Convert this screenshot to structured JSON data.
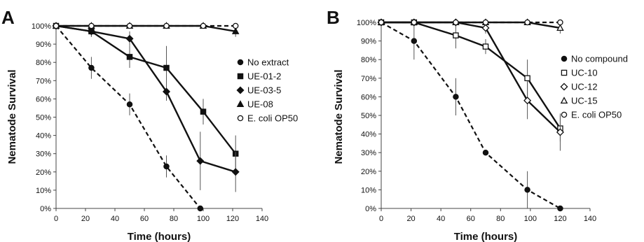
{
  "chart_data": [
    {
      "type": "line",
      "panel_label": "A",
      "xlabel": "Time (hours)",
      "ylabel": "Nematode Survival",
      "xlim": [
        0,
        140
      ],
      "ylim": [
        0,
        100
      ],
      "x_ticks": [
        "0",
        "20",
        "40",
        "60",
        "80",
        "100",
        "120",
        "140"
      ],
      "y_ticks": [
        "0%",
        "10%",
        "20%",
        "30%",
        "40%",
        "50%",
        "60%",
        "70%",
        "80%",
        "90%",
        "100%"
      ],
      "grid": false,
      "legend_position": "right",
      "series": [
        {
          "name": "No extract",
          "marker": "circle-filled",
          "dash": true,
          "x": [
            0,
            24,
            50,
            75,
            98
          ],
          "y": [
            100,
            77,
            57,
            23,
            0
          ],
          "err": [
            0,
            6,
            6,
            6,
            0
          ]
        },
        {
          "name": "UE-01-2",
          "marker": "square-filled",
          "dash": false,
          "x": [
            0,
            24,
            50,
            75,
            100,
            122
          ],
          "y": [
            100,
            97,
            83,
            77,
            53,
            30
          ],
          "err": [
            0,
            3,
            6,
            12,
            7,
            10
          ]
        },
        {
          "name": "UE-03-5",
          "marker": "diamond-filled",
          "dash": false,
          "x": [
            0,
            24,
            50,
            75,
            98,
            122
          ],
          "y": [
            100,
            97,
            93,
            64,
            26,
            20
          ],
          "err": [
            0,
            3,
            4,
            5,
            16,
            11
          ]
        },
        {
          "name": "UE-08",
          "marker": "triangle-filled",
          "dash": false,
          "x": [
            0,
            24,
            50,
            75,
            100,
            122
          ],
          "y": [
            100,
            100,
            100,
            100,
            100,
            97
          ],
          "err": [
            0,
            0,
            0,
            0,
            0,
            3
          ]
        },
        {
          "name": "E. coli OP50",
          "marker": "circle-open",
          "dash": true,
          "x": [
            0,
            24,
            50,
            75,
            100,
            122
          ],
          "y": [
            100,
            100,
            100,
            100,
            100,
            100
          ],
          "err": [
            0,
            0,
            0,
            0,
            0,
            0
          ]
        }
      ]
    },
    {
      "type": "line",
      "panel_label": "B",
      "xlabel": "Time (hours)",
      "ylabel": "Nematode Survival",
      "xlim": [
        0,
        140
      ],
      "ylim": [
        0,
        100
      ],
      "x_ticks": [
        "0",
        "20",
        "40",
        "60",
        "80",
        "100",
        "120",
        "140"
      ],
      "y_ticks": [
        "0%",
        "10%",
        "20%",
        "30%",
        "40%",
        "50%",
        "60%",
        "70%",
        "80%",
        "90%",
        "100%"
      ],
      "grid": false,
      "legend_position": "right",
      "series": [
        {
          "name": "No compound",
          "marker": "circle-filled",
          "dash": true,
          "x": [
            0,
            22,
            50,
            70,
            98,
            120
          ],
          "y": [
            100,
            90,
            60,
            30,
            10,
            0
          ],
          "err": [
            0,
            10,
            10,
            0,
            10,
            0
          ]
        },
        {
          "name": "UC-10",
          "marker": "square-open",
          "dash": false,
          "x": [
            0,
            22,
            50,
            70,
            98,
            120
          ],
          "y": [
            100,
            100,
            93,
            87,
            70,
            43
          ],
          "err": [
            0,
            0,
            7,
            4,
            10,
            7
          ]
        },
        {
          "name": "UC-12",
          "marker": "diamond-open",
          "dash": false,
          "x": [
            0,
            22,
            50,
            70,
            98,
            120
          ],
          "y": [
            100,
            100,
            100,
            97,
            58,
            41
          ],
          "err": [
            0,
            0,
            0,
            3,
            10,
            10
          ]
        },
        {
          "name": "UC-15",
          "marker": "triangle-open",
          "dash": false,
          "x": [
            0,
            22,
            50,
            70,
            98,
            120
          ],
          "y": [
            100,
            100,
            100,
            100,
            100,
            97
          ],
          "err": [
            0,
            0,
            0,
            0,
            0,
            3
          ]
        },
        {
          "name": "E. coli OP50",
          "marker": "circle-open",
          "dash": true,
          "x": [
            0,
            22,
            50,
            70,
            98,
            120
          ],
          "y": [
            100,
            100,
            100,
            100,
            100,
            100
          ],
          "err": [
            0,
            0,
            0,
            0,
            0,
            0
          ]
        }
      ]
    }
  ]
}
